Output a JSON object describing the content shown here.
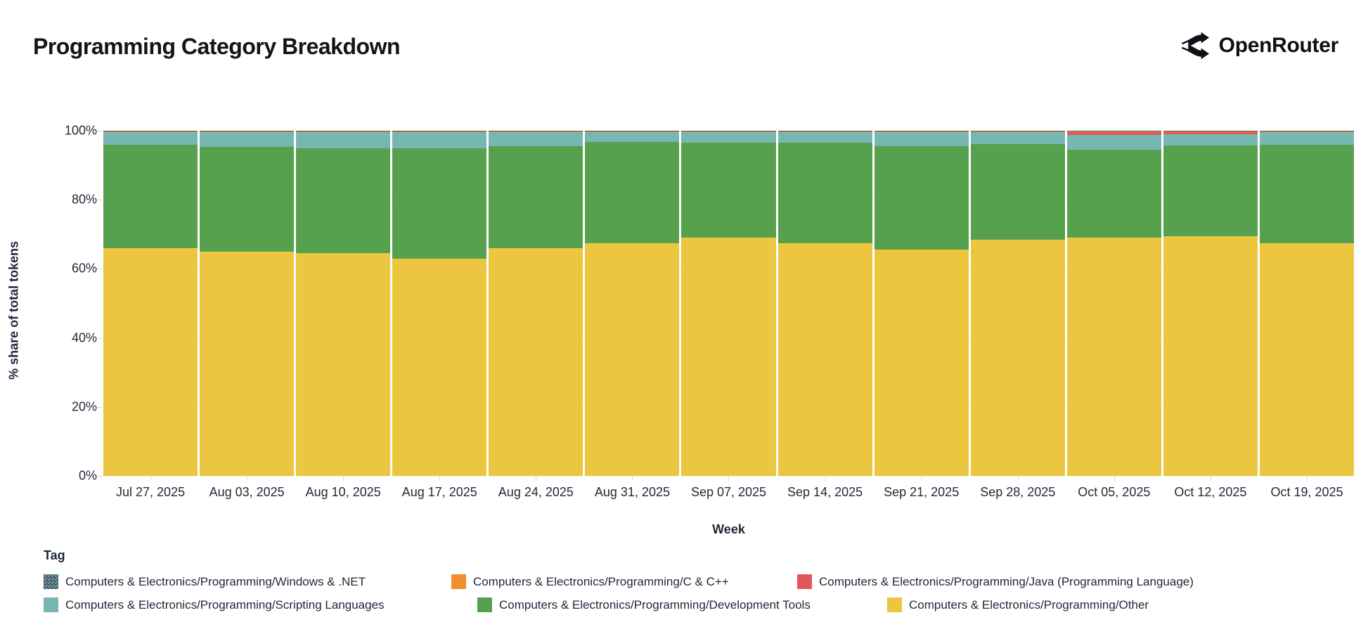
{
  "header": {
    "title": "Programming Category Breakdown",
    "brand": "OpenRouter"
  },
  "colors": {
    "windows_dotnet": "#47566b",
    "c_cpp": "#f28e2b",
    "java": "#e15759",
    "scripting": "#76b7b2",
    "dev_tools": "#55a14e",
    "other": "#ecc63e",
    "axis_text": "#222b3a",
    "grid": "#ececec"
  },
  "chart_data": {
    "type": "bar",
    "stacked": true,
    "normalized_percent": true,
    "title": "Programming Category Breakdown",
    "xlabel": "Week",
    "ylabel": "% share of total tokens",
    "ylim": [
      0,
      100
    ],
    "y_ticks": [
      "0%",
      "20%",
      "40%",
      "60%",
      "80%",
      "100%"
    ],
    "grid": true,
    "legend_title": "Tag",
    "legend_position": "bottom",
    "categories": [
      "Jul 27, 2025",
      "Aug 03, 2025",
      "Aug 10, 2025",
      "Aug 17, 2025",
      "Aug 24, 2025",
      "Aug 31, 2025",
      "Sep 07, 2025",
      "Sep 14, 2025",
      "Sep 21, 2025",
      "Sep 28, 2025",
      "Oct 05, 2025",
      "Oct 12, 2025",
      "Oct 19, 2025"
    ],
    "series": [
      {
        "name": "Computers & Electronics/Programming/Other",
        "color_key": "other",
        "values": [
          66.0,
          65.0,
          64.5,
          63.0,
          66.0,
          67.5,
          69.0,
          67.5,
          65.5,
          68.5,
          69.0,
          69.5,
          67.5
        ]
      },
      {
        "name": "Computers & Electronics/Programming/Development Tools",
        "color_key": "dev_tools",
        "values": [
          29.9,
          30.4,
          30.4,
          31.9,
          29.6,
          29.2,
          27.6,
          29.1,
          30.1,
          27.6,
          25.5,
          26.2,
          28.4
        ]
      },
      {
        "name": "Computers & Electronics/Programming/Scripting Languages",
        "color_key": "scripting",
        "values": [
          3.7,
          4.2,
          4.7,
          4.7,
          4.0,
          2.9,
          3.0,
          3.0,
          4.0,
          3.5,
          4.2,
          3.2,
          3.7
        ]
      },
      {
        "name": "Computers & Electronics/Programming/Java (Programming Language)",
        "color_key": "java",
        "values": [
          0.1,
          0.1,
          0.1,
          0.1,
          0.1,
          0.1,
          0.1,
          0.1,
          0.1,
          0.1,
          1.0,
          0.8,
          0.1
        ]
      },
      {
        "name": "Computers & Electronics/Programming/C & C++",
        "color_key": "c_cpp",
        "values": [
          0.2,
          0.2,
          0.2,
          0.2,
          0.2,
          0.2,
          0.2,
          0.2,
          0.2,
          0.2,
          0.2,
          0.2,
          0.2
        ]
      },
      {
        "name": "Computers & Electronics/Programming/Windows & .NET",
        "color_key": "windows_dotnet",
        "values": [
          0.1,
          0.1,
          0.1,
          0.1,
          0.1,
          0.1,
          0.1,
          0.1,
          0.1,
          0.1,
          0.1,
          0.1,
          0.1
        ]
      }
    ],
    "legend_items": [
      [
        {
          "label": "Computers & Electronics/Programming/Windows & .NET",
          "color_key": "windows_dotnet",
          "patterned": true
        },
        {
          "label": "Computers & Electronics/Programming/C & C++",
          "color_key": "c_cpp",
          "patterned": false
        },
        {
          "label": "Computers & Electronics/Programming/Java (Programming Language)",
          "color_key": "java",
          "patterned": false
        }
      ],
      [
        {
          "label": "Computers & Electronics/Programming/Scripting Languages",
          "color_key": "scripting",
          "patterned": false
        },
        {
          "label": "Computers & Electronics/Programming/Development Tools",
          "color_key": "dev_tools",
          "patterned": false
        },
        {
          "label": "Computers & Electronics/Programming/Other",
          "color_key": "other",
          "patterned": false
        }
      ]
    ]
  }
}
